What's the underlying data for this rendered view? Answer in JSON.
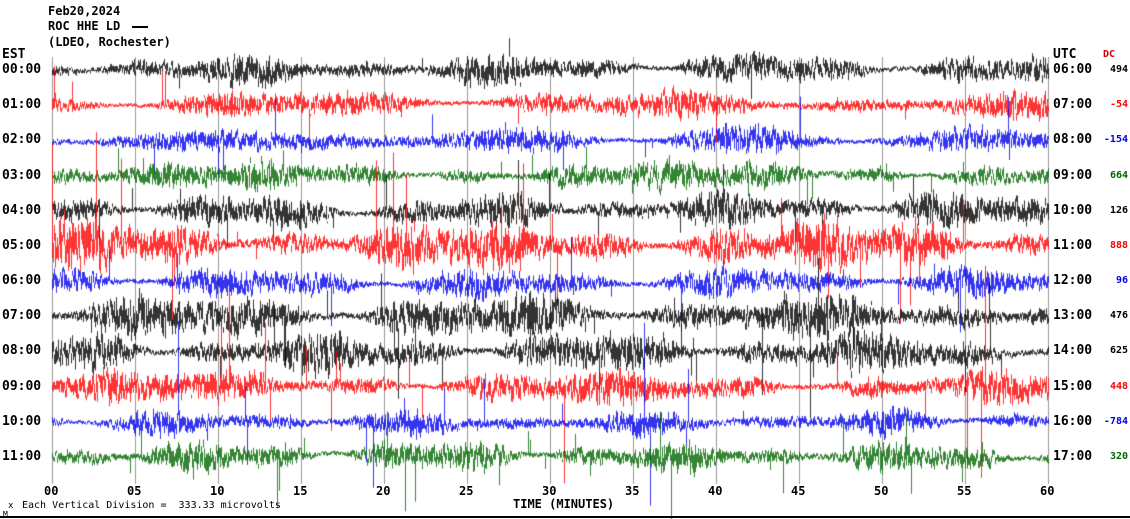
{
  "header": {
    "date": "Feb20,2024",
    "station": "ROC HHE LD",
    "location": "(LDEO, Rochester)"
  },
  "axes": {
    "left_label": "EST",
    "right_label": "UTC",
    "dc_label": "DC",
    "x_label": "TIME (MINUTES)",
    "x_ticks": [
      "00",
      "05",
      "10",
      "15",
      "20",
      "25",
      "30",
      "35",
      "40",
      "45",
      "50",
      "55",
      "60"
    ]
  },
  "footer": {
    "marker": "x",
    "scale_note": "Each Vertical Division =  333.33 microvolts",
    "corner": "M"
  },
  "colors": {
    "black": "#000000",
    "red": "#ff0000",
    "blue": "#0000ee",
    "green": "#006600",
    "grid": "#999999",
    "dc_header": "#cc0000"
  },
  "chart_data": {
    "type": "line",
    "subtype": "seismogram-helicorder",
    "title": "ROC HHE LD (LDEO, Rochester) Feb20,2024",
    "xlabel": "TIME (MINUTES)",
    "x_range_minutes": [
      0,
      60
    ],
    "minutes_per_row": 60,
    "vertical_division_microvolts": 333.33,
    "grid": true,
    "rows": [
      {
        "est": "00:00",
        "utc": "06:00",
        "dc": "494",
        "color": "black",
        "amp": 14,
        "spike_amp": 20,
        "spike_rate": 0.004,
        "seed": 11
      },
      {
        "est": "01:00",
        "utc": "07:00",
        "dc": "-54",
        "color": "red",
        "amp": 12,
        "spike_amp": 30,
        "spike_rate": 0.005,
        "seed": 22
      },
      {
        "est": "02:00",
        "utc": "08:00",
        "dc": "-154",
        "color": "blue",
        "amp": 12,
        "spike_amp": 38,
        "spike_rate": 0.004,
        "seed": 33
      },
      {
        "est": "03:00",
        "utc": "09:00",
        "dc": "664",
        "color": "green",
        "amp": 13,
        "spike_amp": 24,
        "spike_rate": 0.004,
        "seed": 44
      },
      {
        "est": "04:00",
        "utc": "10:00",
        "dc": "126",
        "color": "black",
        "amp": 16,
        "spike_amp": 30,
        "spike_rate": 0.006,
        "seed": 55
      },
      {
        "est": "05:00",
        "utc": "11:00",
        "dc": "888",
        "color": "red",
        "amp": 22,
        "spike_amp": 48,
        "spike_rate": 0.007,
        "seed": 66
      },
      {
        "est": "06:00",
        "utc": "12:00",
        "dc": "96",
        "color": "blue",
        "amp": 14,
        "spike_amp": 30,
        "spike_rate": 0.005,
        "seed": 77
      },
      {
        "est": "07:00",
        "utc": "13:00",
        "dc": "476",
        "color": "black",
        "amp": 20,
        "spike_amp": 38,
        "spike_rate": 0.007,
        "seed": 88
      },
      {
        "est": "08:00",
        "utc": "14:00",
        "dc": "625",
        "color": "black",
        "amp": 18,
        "spike_amp": 32,
        "spike_rate": 0.006,
        "seed": 99
      },
      {
        "est": "09:00",
        "utc": "15:00",
        "dc": "448",
        "color": "red",
        "amp": 15,
        "spike_amp": 52,
        "spike_rate": 0.005,
        "seed": 111
      },
      {
        "est": "10:00",
        "utc": "16:00",
        "dc": "-784",
        "color": "blue",
        "amp": 11,
        "spike_amp": 45,
        "spike_rate": 0.006,
        "seed": 122
      },
      {
        "est": "11:00",
        "utc": "17:00",
        "dc": "320",
        "color": "green",
        "amp": 14,
        "spike_amp": 30,
        "spike_rate": 0.005,
        "seed": 133
      }
    ]
  }
}
